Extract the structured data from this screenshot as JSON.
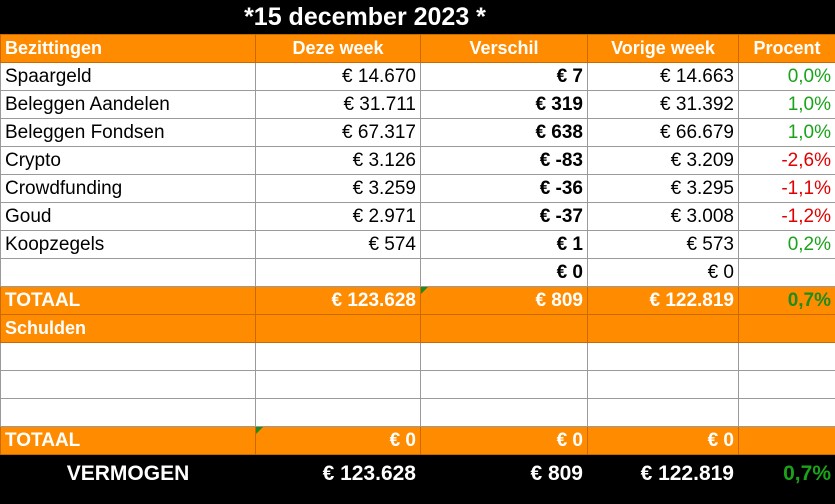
{
  "title": "*15 december 2023 *",
  "colors": {
    "orange": "#ff8c00",
    "positive": "#1aa31a",
    "negative": "#e00000"
  },
  "header": {
    "col0": "Bezittingen",
    "col1": "Deze week",
    "col2": "Verschil",
    "col3": "Vorige week",
    "col4": "Procent"
  },
  "rows": [
    {
      "name": "Spaargeld",
      "deze_week": "€ 14.670",
      "verschil": "€ 7",
      "vorige_week": "€ 14.663",
      "procent": "0,0%"
    },
    {
      "name": "Beleggen Aandelen",
      "deze_week": "€ 31.711",
      "verschil": "€ 319",
      "vorige_week": "€ 31.392",
      "procent": "1,0%"
    },
    {
      "name": "Beleggen Fondsen",
      "deze_week": "€ 67.317",
      "verschil": "€ 638",
      "vorige_week": "€ 66.679",
      "procent": "1,0%"
    },
    {
      "name": "Crypto",
      "deze_week": "€ 3.126",
      "verschil": "€ -83",
      "vorige_week": "€ 3.209",
      "procent": "-2,6%"
    },
    {
      "name": "Crowdfunding",
      "deze_week": "€ 3.259",
      "verschil": "€ -36",
      "vorige_week": "€ 3.295",
      "procent": "-1,1%"
    },
    {
      "name": "Goud",
      "deze_week": "€ 2.971",
      "verschil": "€ -37",
      "vorige_week": "€ 3.008",
      "procent": "-1,2%"
    },
    {
      "name": "Koopzegels",
      "deze_week": "€ 574",
      "verschil": "€ 1",
      "vorige_week": "€ 573",
      "procent": "0,2%"
    },
    {
      "name": "",
      "deze_week": "",
      "verschil": "€ 0",
      "vorige_week": "€ 0",
      "procent": ""
    }
  ],
  "totaal_bezittingen": {
    "label": "TOTAAL",
    "deze_week": "€ 123.628",
    "verschil": "€ 809",
    "vorige_week": "€ 122.819",
    "procent": "0,7%"
  },
  "schulden": {
    "label": "Schulden"
  },
  "totaal_schulden": {
    "label": "TOTAAL",
    "deze_week": "€ 0",
    "verschil": "€ 0",
    "vorige_week": "€ 0",
    "procent": ""
  },
  "vermogen": {
    "label": "VERMOGEN",
    "deze_week": "€ 123.628",
    "verschil": "€ 809",
    "vorige_week": "€ 122.819",
    "procent": "0,7%"
  }
}
